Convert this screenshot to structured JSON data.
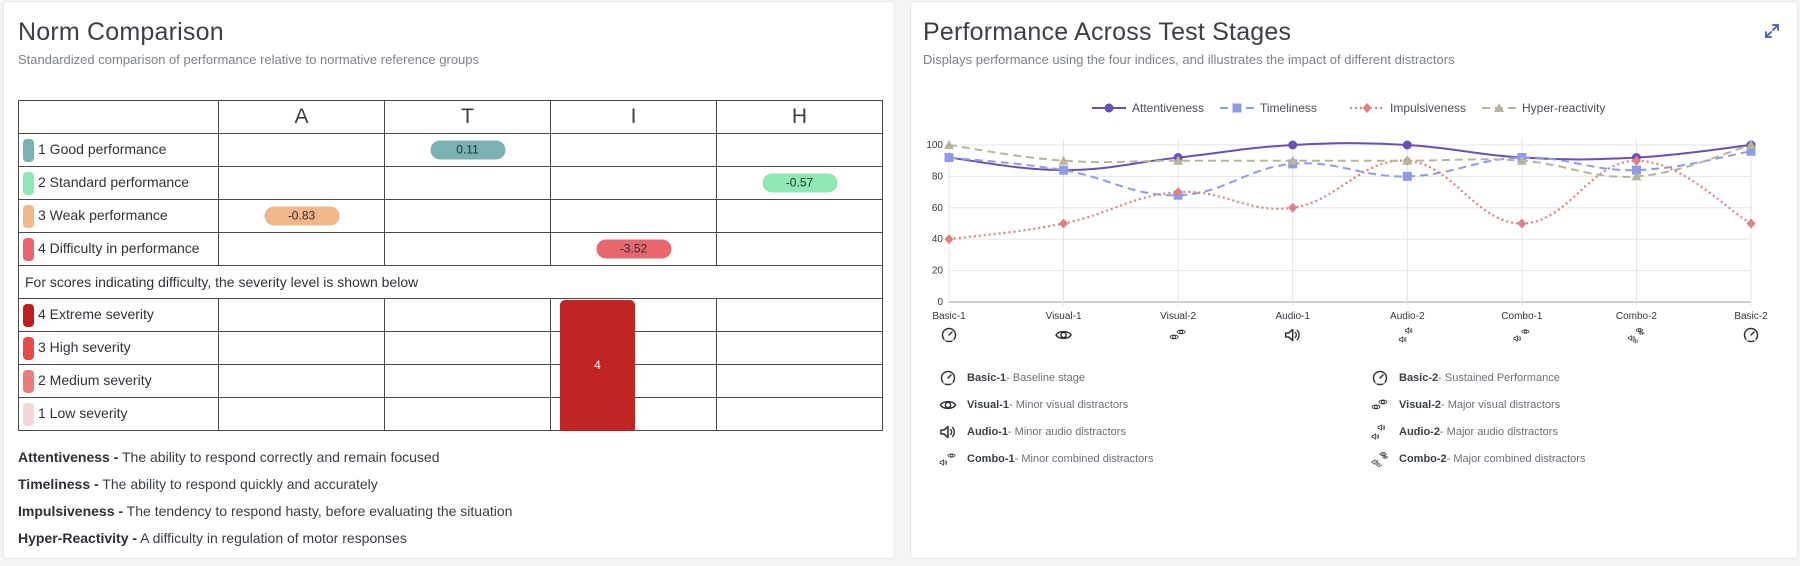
{
  "left": {
    "title": "Norm Comparison",
    "subtitle": "Standardized comparison of performance relative to normative reference groups",
    "columns": [
      "A",
      "T",
      "I",
      "H"
    ],
    "performance_rows": [
      {
        "label": "1 Good performance",
        "color": "#78b3b2",
        "values": [
          "",
          "0.11",
          "",
          ""
        ]
      },
      {
        "label": "2 Standard performance",
        "color": "#8ee8b4",
        "values": [
          "",
          "",
          "",
          "-0.57"
        ]
      },
      {
        "label": "3 Weak performance",
        "color": "#f3b58a",
        "values": [
          "-0.83",
          "",
          "",
          ""
        ]
      },
      {
        "label": "4 Difficulty in performance",
        "color": "#e8676f",
        "values": [
          "",
          "",
          "-3.52",
          ""
        ]
      }
    ],
    "severity_note": "For scores indicating difficulty, the severity level is shown below",
    "severity_rows": [
      {
        "label": "4 Extreme severity",
        "color": "#bf1f1f"
      },
      {
        "label": "3 High severity",
        "color": "#e64b4b"
      },
      {
        "label": "2 Medium severity",
        "color": "#ea7c78"
      },
      {
        "label": "1 Low severity",
        "color": "#f6d5d5"
      }
    ],
    "severity_value": "4",
    "severity_level": 4,
    "severity_color": "#c22424",
    "definitions": [
      {
        "term": "Attentiveness -",
        "text": " The ability to respond correctly and remain focused"
      },
      {
        "term": "Timeliness -",
        "text": " The ability to respond quickly and accurately"
      },
      {
        "term": "Impulsiveness -",
        "text": " The tendency to respond hasty, before evaluating the situation"
      },
      {
        "term": "Hyper-Reactivity -",
        "text": " A difficulty in regulation of motor responses"
      }
    ]
  },
  "right": {
    "title": "Performance Across Test Stages",
    "subtitle": "Displays performance using the four indices, and illustrates the impact of different distractors",
    "expand_icon": "expand-icon",
    "stage_legend": [
      {
        "icon": "gauge-icon",
        "name": "Basic-1",
        "desc": " - Baseline stage"
      },
      {
        "icon": "eye-icon",
        "name": "Visual-1",
        "desc": " - Minor visual distractors"
      },
      {
        "icon": "speaker-icon",
        "name": "Audio-1",
        "desc": " - Minor audio distractors"
      },
      {
        "icon": "combo-icon",
        "name": "Combo-1",
        "desc": " - Minor combined distractors"
      },
      {
        "icon": "gauge-icon",
        "name": "Basic-2",
        "desc": " - Sustained Performance"
      },
      {
        "icon": "eyes-icon",
        "name": "Visual-2",
        "desc": " - Major visual distractors"
      },
      {
        "icon": "speakers-icon",
        "name": "Audio-2",
        "desc": " - Major audio distractors"
      },
      {
        "icon": "combos-icon",
        "name": "Combo-2",
        "desc": " - Major combined distractors"
      }
    ]
  },
  "chart_data": {
    "type": "line",
    "categories": [
      "Basic-1",
      "Visual-1",
      "Visual-2",
      "Audio-1",
      "Audio-2",
      "Combo-1",
      "Combo-2",
      "Basic-2"
    ],
    "category_icons": [
      "gauge-icon",
      "eye-icon",
      "eyes-icon",
      "speaker-icon",
      "speakers-icon",
      "combo-icon",
      "combos-icon",
      "gauge-icon"
    ],
    "ylim": [
      0,
      100
    ],
    "yticks": [
      0,
      20,
      40,
      60,
      80,
      100
    ],
    "grid": true,
    "legend_position": "top-center",
    "series": [
      {
        "name": "Attentiveness",
        "color": "#6b4fb5",
        "dash": "solid",
        "marker": "circle",
        "values": [
          92,
          84,
          92,
          100,
          100,
          92,
          92,
          100
        ]
      },
      {
        "name": "Timeliness",
        "color": "#8c9de8",
        "dash": "dashed",
        "marker": "square",
        "values": [
          92,
          84,
          68,
          88,
          80,
          92,
          84,
          96
        ]
      },
      {
        "name": "Impulsiveness",
        "color": "#e08080",
        "dash": "dotted",
        "marker": "diamond",
        "values": [
          40,
          50,
          70,
          60,
          90,
          50,
          90,
          50
        ]
      },
      {
        "name": "Hyper-reactivity",
        "color": "#b8b49c",
        "dash": "dashed",
        "marker": "triangle",
        "values": [
          100,
          90,
          90,
          90,
          90,
          90,
          80,
          100
        ]
      }
    ]
  }
}
